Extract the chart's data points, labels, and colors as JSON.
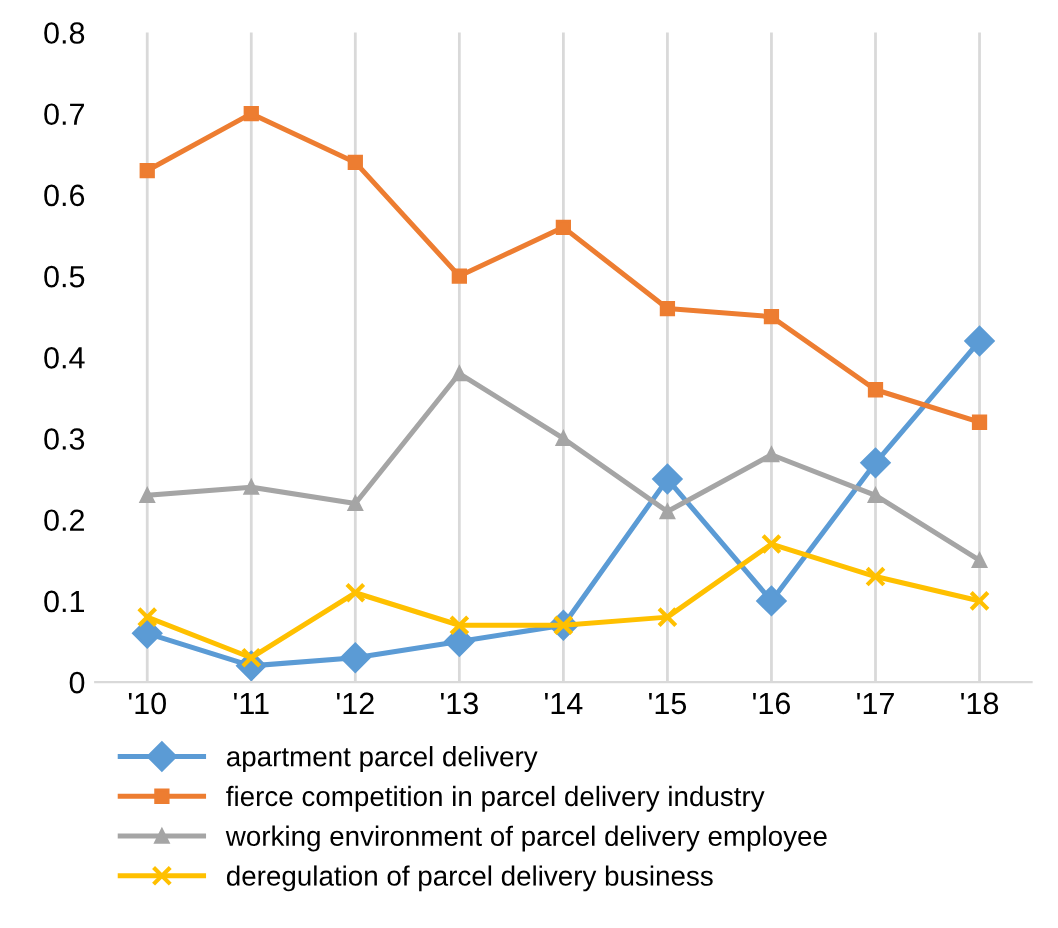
{
  "chart_data": {
    "type": "line",
    "categories": [
      "'10",
      "'11",
      "'12",
      "'13",
      "'14",
      "'15",
      "'16",
      "'17",
      "'18"
    ],
    "series": [
      {
        "name": "apartment parcel delivery",
        "color": "#5b9bd5",
        "marker": "diamond",
        "values": [
          0.06,
          0.02,
          0.03,
          0.05,
          0.07,
          0.25,
          0.1,
          0.27,
          0.42
        ]
      },
      {
        "name": "fierce competition in parcel delivery industry",
        "color": "#ed7d31",
        "marker": "square",
        "values": [
          0.63,
          0.7,
          0.64,
          0.5,
          0.56,
          0.46,
          0.45,
          0.36,
          0.32
        ]
      },
      {
        "name": "working environment of parcel delivery employee",
        "color": "#a5a5a5",
        "marker": "triangle",
        "values": [
          0.23,
          0.24,
          0.22,
          0.38,
          0.3,
          0.21,
          0.28,
          0.23,
          0.15
        ]
      },
      {
        "name": "deregulation of parcel delivery business",
        "color": "#ffc000",
        "marker": "cross",
        "values": [
          0.08,
          0.03,
          0.11,
          0.07,
          0.07,
          0.08,
          0.17,
          0.13,
          0.1
        ]
      }
    ],
    "ylim": [
      0,
      0.8
    ],
    "yticks": [
      0,
      0.1,
      0.2,
      0.3,
      0.4,
      0.5,
      0.6,
      0.7,
      0.8
    ],
    "grid": "x",
    "legend": "bottom",
    "line_style": "solid"
  }
}
